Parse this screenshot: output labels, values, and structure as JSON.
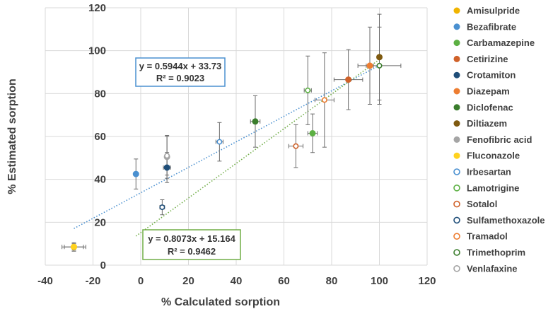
{
  "chart_data": {
    "type": "scatter",
    "title": "",
    "xlabel": "% Calculated sorption",
    "ylabel": "% Estimated sorption",
    "xlim": [
      -40,
      120
    ],
    "ylim": [
      0,
      120
    ],
    "xticks": [
      -40,
      -20,
      0,
      20,
      40,
      60,
      80,
      100,
      120
    ],
    "yticks": [
      0,
      20,
      40,
      60,
      80,
      100,
      120
    ],
    "grid": "vertical and horizontal major gridlines",
    "legend_position": "right",
    "series": [
      {
        "name": "Amisulpride",
        "color": "#F0B400",
        "marker": "filled",
        "x": -28,
        "y": 8.5,
        "xerr": 5,
        "yerr": 2
      },
      {
        "name": "Bezafibrate",
        "color": "#4A90D0",
        "marker": "filled",
        "x": -2,
        "y": 42.5,
        "xerr": 0,
        "yerr": 7
      },
      {
        "name": "Carbamazepine",
        "color": "#5CB043",
        "marker": "filled",
        "x": 72,
        "y": 61.5,
        "xerr": 2,
        "yerr": 9
      },
      {
        "name": "Cetirizine",
        "color": "#D0622A",
        "marker": "filled",
        "x": 87,
        "y": 86.5,
        "xerr": 6,
        "yerr": 14
      },
      {
        "name": "Crotamiton",
        "color": "#1F4E79",
        "marker": "filled",
        "x": 11,
        "y": 45.5,
        "xerr": 1.5,
        "yerr": 7
      },
      {
        "name": "Diazepam",
        "color": "#ED7D31",
        "marker": "filled",
        "x": 96,
        "y": 93,
        "xerr": 1.5,
        "yerr": 18
      },
      {
        "name": "Diclofenac",
        "color": "#3A7D2C",
        "marker": "filled",
        "x": 48,
        "y": 67,
        "xerr": 2,
        "yerr": 12
      },
      {
        "name": "Diltiazem",
        "color": "#7F5A10",
        "marker": "filled",
        "x": 100,
        "y": 97,
        "xerr": 0,
        "yerr": 20
      },
      {
        "name": "Fenofibric acid",
        "color": "#A5A5A5",
        "marker": "filled",
        "x": 11,
        "y": 50.5,
        "xerr": 0,
        "yerr": 10
      },
      {
        "name": "Fluconazole",
        "color": "#FFD21F",
        "marker": "filled",
        "x": -28,
        "y": 8.5,
        "xerr": 4,
        "yerr": 1.5
      },
      {
        "name": "Irbesartan",
        "color": "#4A90D0",
        "marker": "hollow",
        "x": 33,
        "y": 57.5,
        "xerr": 1.5,
        "yerr": 9
      },
      {
        "name": "Lamotrigine",
        "color": "#5CB043",
        "marker": "hollow",
        "x": 70,
        "y": 81.5,
        "xerr": 1.5,
        "yerr": 16
      },
      {
        "name": "Sotalol",
        "color": "#D0622A",
        "marker": "hollow",
        "x": 65,
        "y": 55.5,
        "xerr": 3,
        "yerr": 10
      },
      {
        "name": "Sulfamethoxazole",
        "color": "#1F4E79",
        "marker": "hollow",
        "x": 9,
        "y": 27,
        "xerr": 1,
        "yerr": 3.5
      },
      {
        "name": "Tramadol",
        "color": "#ED7D31",
        "marker": "hollow",
        "x": 77,
        "y": 77,
        "xerr": 4,
        "yerr": 22
      },
      {
        "name": "Trimethoprim",
        "color": "#3A7D2C",
        "marker": "hollow",
        "x": 100,
        "y": 93,
        "xerr": 9,
        "yerr": 18
      },
      {
        "name": "Venlafaxine",
        "color": "#A5A5A5",
        "marker": "hollow",
        "x": 11,
        "y": 51,
        "xerr": 0,
        "yerr": 9
      }
    ],
    "trendlines": [
      {
        "name": "blue-trend",
        "color": "#4A90D0",
        "slope": 0.5944,
        "intercept": 33.73,
        "x_range": [
          -28,
          100
        ],
        "equation": "y = 0.5944x + 33.73",
        "r2": "R² = 0.9023"
      },
      {
        "name": "green-trend",
        "color": "#70AD47",
        "slope": 0.8073,
        "intercept": 15.164,
        "x_range": [
          -2,
          100
        ],
        "equation": "y = 0.8073x + 15.164",
        "r2": "R² = 0.9462"
      }
    ]
  }
}
